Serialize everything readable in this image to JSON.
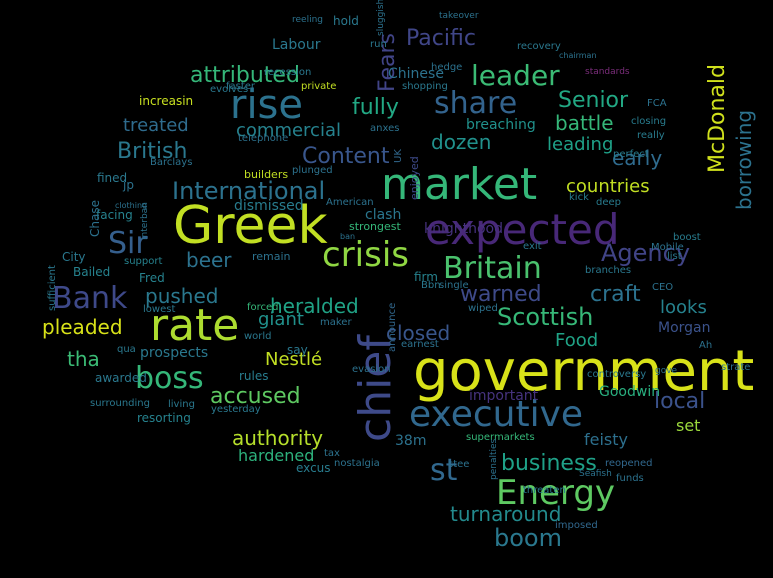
{
  "words": [
    {
      "text": "government",
      "color": "#d8e219"
    },
    {
      "text": "Greek",
      "color": "#c2df23"
    },
    {
      "text": "expected",
      "color": "#482878"
    },
    {
      "text": "market",
      "color": "#35b779"
    },
    {
      "text": "executive",
      "color": "#31688e"
    },
    {
      "text": "chief",
      "color": "#3e4a89"
    },
    {
      "text": "rate",
      "color": "#addc30"
    },
    {
      "text": "rise",
      "color": "#2c728e"
    },
    {
      "text": "crisis",
      "color": "#90d743"
    },
    {
      "text": "Energy",
      "color": "#5ec962"
    },
    {
      "text": "Britain",
      "color": "#4ac16d"
    },
    {
      "text": "share",
      "color": "#33638d"
    },
    {
      "text": "leader",
      "color": "#3bbb75"
    },
    {
      "text": "boss",
      "color": "#35b779"
    },
    {
      "text": "Bank",
      "color": "#3e4989"
    },
    {
      "text": "Sir",
      "color": "#355f8d"
    },
    {
      "text": "st",
      "color": "#31688e"
    },
    {
      "text": "International",
      "color": "#2c728e"
    },
    {
      "text": "Fears",
      "color": "#414487"
    },
    {
      "text": "Agency",
      "color": "#414487"
    },
    {
      "text": "McDonald",
      "color": "#d0e11c"
    },
    {
      "text": "Scottish",
      "color": "#37b878"
    },
    {
      "text": "boom",
      "color": "#2a788e"
    },
    {
      "text": "business",
      "color": "#1fa188"
    },
    {
      "text": "accused",
      "color": "#5ec962"
    },
    {
      "text": "Pacific",
      "color": "#404688"
    },
    {
      "text": "attributed",
      "color": "#35b779"
    },
    {
      "text": "Senior",
      "color": "#22a884"
    },
    {
      "text": "Content",
      "color": "#39568c"
    },
    {
      "text": "British",
      "color": "#2a788e"
    },
    {
      "text": "warned",
      "color": "#3e4a89"
    },
    {
      "text": "craft",
      "color": "#2c728e"
    },
    {
      "text": "borrowing",
      "color": "#2c728e"
    },
    {
      "text": "local",
      "color": "#3b528b"
    },
    {
      "text": "closed",
      "color": "#39568c"
    },
    {
      "text": "heralded",
      "color": "#20a386"
    },
    {
      "text": "beer",
      "color": "#2c728e"
    },
    {
      "text": "pushed",
      "color": "#2a788e"
    },
    {
      "text": "pleaded",
      "color": "#d8e219"
    },
    {
      "text": "tha",
      "color": "#3bbb75"
    },
    {
      "text": "authority",
      "color": "#b5de2b"
    },
    {
      "text": "turnaround",
      "color": "#238a8d"
    },
    {
      "text": "fully",
      "color": "#22a884"
    },
    {
      "text": "commercial",
      "color": "#26828e"
    },
    {
      "text": "treated",
      "color": "#2f6c8e"
    },
    {
      "text": "countries",
      "color": "#c2df23"
    },
    {
      "text": "early",
      "color": "#2f6b8e"
    },
    {
      "text": "dozen",
      "color": "#21918c"
    },
    {
      "text": "battle",
      "color": "#35b779"
    },
    {
      "text": "leading",
      "color": "#1fa188"
    },
    {
      "text": "giant",
      "color": "#21918c"
    },
    {
      "text": "Nestlé",
      "color": "#c2df23"
    },
    {
      "text": "Food",
      "color": "#20a386"
    },
    {
      "text": "looks",
      "color": "#26828e"
    },
    {
      "text": "hardened",
      "color": "#2db27d"
    },
    {
      "text": "feisty",
      "color": "#2d708e"
    },
    {
      "text": "set",
      "color": "#9bd93c"
    },
    {
      "text": "prospects",
      "color": "#2a788e"
    },
    {
      "text": "Goodwin",
      "color": "#29af7f"
    },
    {
      "text": "important",
      "color": "#46337e"
    },
    {
      "text": "Morgan",
      "color": "#3b528b"
    },
    {
      "text": "knighthood",
      "color": "#46327e"
    },
    {
      "text": "clash",
      "color": "#2a768e"
    },
    {
      "text": "Chinese",
      "color": "#2c728e"
    },
    {
      "text": "Labour",
      "color": "#2a788e"
    },
    {
      "text": "breaching",
      "color": "#21918c"
    },
    {
      "text": "increasin",
      "color": "#c8e020"
    },
    {
      "text": "dismissed",
      "color": "#287c8e"
    },
    {
      "text": "fined",
      "color": "#2a788e"
    },
    {
      "text": "facing",
      "color": "#26828e"
    },
    {
      "text": "rules",
      "color": "#287d8e"
    },
    {
      "text": "resorting",
      "color": "#26828e"
    },
    {
      "text": "awarded",
      "color": "#2a788e"
    },
    {
      "text": "excus",
      "color": "#287c8e"
    },
    {
      "text": "38m",
      "color": "#2c728e"
    },
    {
      "text": "announce",
      "color": "#31688e"
    },
    {
      "text": "supermarkets",
      "color": "#35b779"
    },
    {
      "text": "threaten",
      "color": "#2a788e"
    },
    {
      "text": "imposed",
      "color": "#31688e"
    },
    {
      "text": "stee",
      "color": "#2c728e"
    },
    {
      "text": "City",
      "color": "#2a788e"
    },
    {
      "text": "Chase",
      "color": "#2c728e"
    },
    {
      "text": "Fred",
      "color": "#26828e"
    },
    {
      "text": "Bailed",
      "color": "#26828e"
    },
    {
      "text": "say",
      "color": "#2a788e"
    },
    {
      "text": "firm",
      "color": "#26828e"
    },
    {
      "text": "builders",
      "color": "#c2df23"
    },
    {
      "text": "strongest",
      "color": "#35b779"
    },
    {
      "text": "remain",
      "color": "#2c728e"
    },
    {
      "text": "support",
      "color": "#26828e"
    },
    {
      "text": "forced",
      "color": "#35b779"
    },
    {
      "text": "maker",
      "color": "#2c728e"
    },
    {
      "text": "hold",
      "color": "#2a788e"
    },
    {
      "text": "run",
      "color": "#2a788e"
    },
    {
      "text": "anxes",
      "color": "#2c728e"
    },
    {
      "text": "private",
      "color": "#c2df23"
    },
    {
      "text": "faster",
      "color": "#2a788e"
    },
    {
      "text": "evolves",
      "color": "#2a788e"
    },
    {
      "text": "shopping",
      "color": "#2a788e"
    },
    {
      "text": "recovery",
      "color": "#2a788e"
    },
    {
      "text": "hedge",
      "color": "#2c728e"
    },
    {
      "text": "closing",
      "color": "#287c8e"
    },
    {
      "text": "really",
      "color": "#287c8e"
    },
    {
      "text": "perfect",
      "color": "#287c8e"
    },
    {
      "text": "boost",
      "color": "#287c8e"
    },
    {
      "text": "list",
      "color": "#2a788e"
    },
    {
      "text": "branches",
      "color": "#2a788e"
    },
    {
      "text": "exit",
      "color": "#2a788e"
    },
    {
      "text": "deep",
      "color": "#287c8e"
    },
    {
      "text": "kick",
      "color": "#287c8e"
    },
    {
      "text": "controversy",
      "color": "#2a788e"
    },
    {
      "text": "single",
      "color": "#2c728e"
    },
    {
      "text": "Bbn",
      "color": "#2a788e"
    },
    {
      "text": "wiped",
      "color": "#2c728e"
    },
    {
      "text": "earnest",
      "color": "#2c728e"
    },
    {
      "text": "nostalgia",
      "color": "#2c728e"
    },
    {
      "text": "reopened",
      "color": "#31688e"
    },
    {
      "text": "funds",
      "color": "#2c728e"
    },
    {
      "text": "tax",
      "color": "#2c728e"
    },
    {
      "text": "evasion",
      "color": "#2c728e"
    },
    {
      "text": "yesterday",
      "color": "#2a788e"
    },
    {
      "text": "living",
      "color": "#2a788e"
    },
    {
      "text": "surrounding",
      "color": "#2a788e"
    },
    {
      "text": "lowest",
      "color": "#2a788e"
    },
    {
      "text": "world",
      "color": "#2a788e"
    },
    {
      "text": "recession",
      "color": "#2a788e"
    },
    {
      "text": "telephone",
      "color": "#2c728e"
    },
    {
      "text": "plunged",
      "color": "#2c728e"
    },
    {
      "text": "American",
      "color": "#2c728e"
    },
    {
      "text": "Barclays",
      "color": "#2c728e"
    },
    {
      "text": "FCA",
      "color": "#2c728e"
    },
    {
      "text": "CEO",
      "color": "#2c728e"
    },
    {
      "text": "Mobile",
      "color": "#2c728e"
    },
    {
      "text": "strate",
      "color": "#2c728e"
    },
    {
      "text": "Ah",
      "color": "#2c728e"
    },
    {
      "text": "UK",
      "color": "#31688e"
    },
    {
      "text": "jp",
      "color": "#2c728e"
    },
    {
      "text": "qua",
      "color": "#2a788e"
    },
    {
      "text": "sufficient",
      "color": "#2a788e"
    },
    {
      "text": "standards",
      "color": "#7a2d7a"
    },
    {
      "text": "reeling",
      "color": "#2c728e"
    },
    {
      "text": "sluggish",
      "color": "#2c728e"
    },
    {
      "text": "takeover",
      "color": "#2c728e"
    },
    {
      "text": "chairman",
      "color": "#2c728e"
    },
    {
      "text": "enjoyed",
      "color": "#3e4a89"
    },
    {
      "text": "gove",
      "color": "#2c728e"
    },
    {
      "text": "penalties",
      "color": "#2c728e"
    },
    {
      "text": "Seafish",
      "color": "#2c728e"
    },
    {
      "text": "interban",
      "color": "#2c728e"
    },
    {
      "text": "clothing",
      "color": "#2c728e"
    },
    {
      "text": "ban",
      "color": "#2c728e"
    }
  ]
}
